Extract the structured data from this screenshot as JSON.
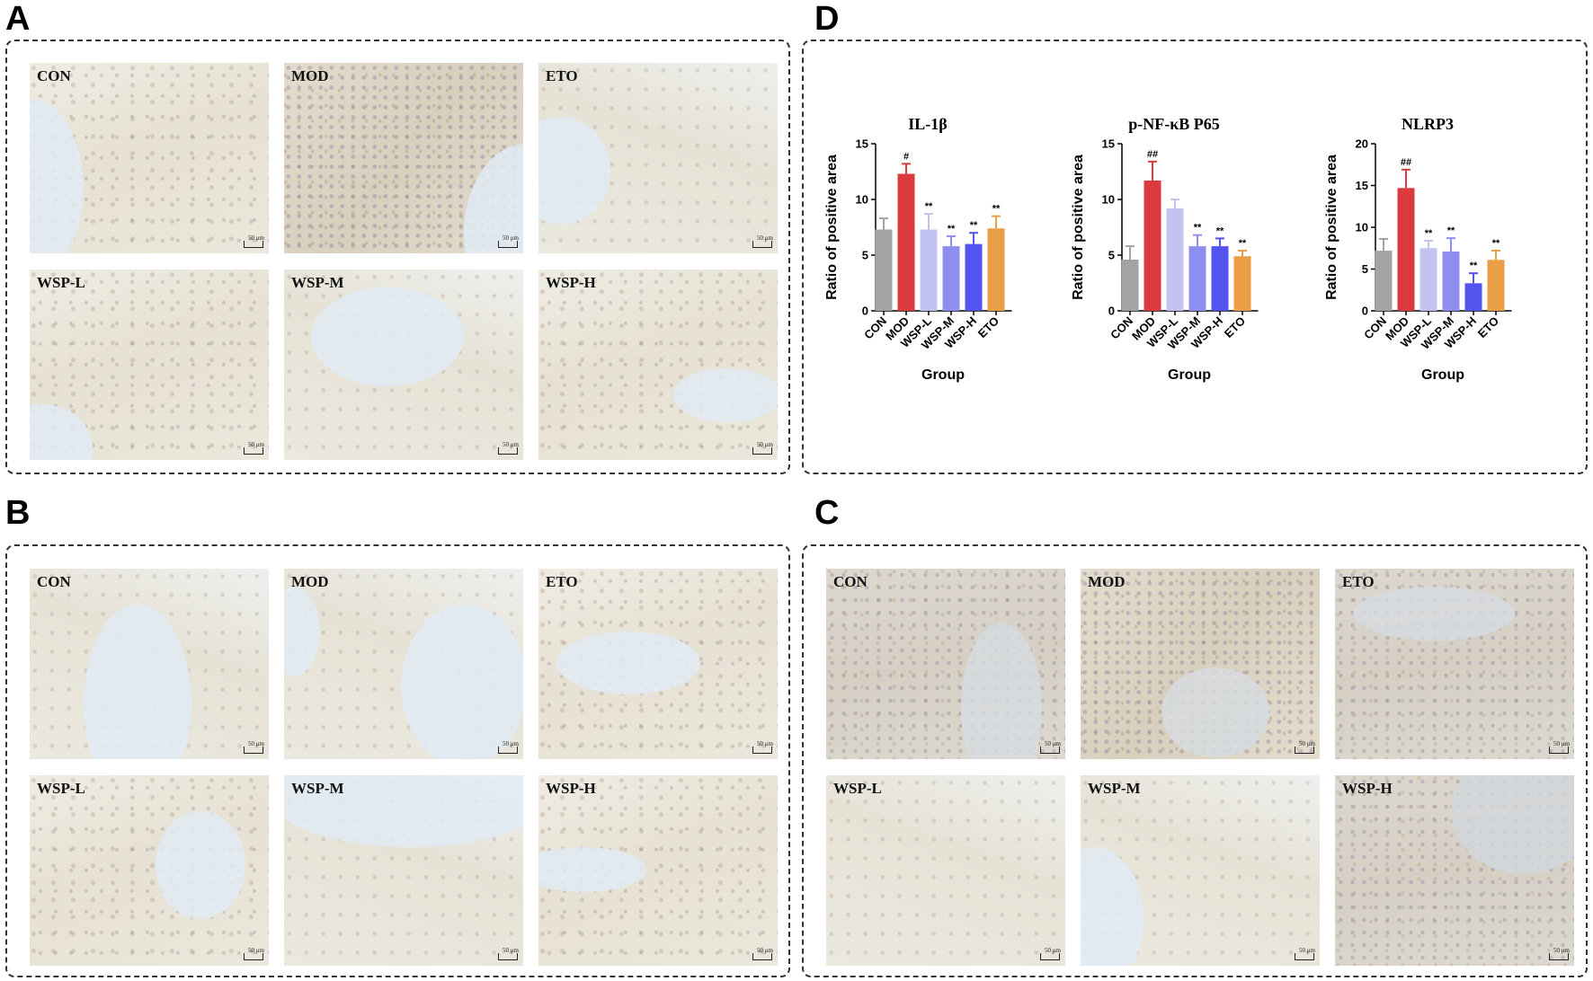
{
  "panels": {
    "A": {
      "letter": "A",
      "images": [
        "CON",
        "MOD",
        "ETO",
        "WSP-L",
        "WSP-M",
        "WSP-H"
      ]
    },
    "B": {
      "letter": "B",
      "images": [
        "CON",
        "MOD",
        "ETO",
        "WSP-L",
        "WSP-M",
        "WSP-H"
      ]
    },
    "C": {
      "letter": "C",
      "images": [
        "CON",
        "MOD",
        "ETO",
        "WSP-L",
        "WSP-M",
        "WSP-H"
      ]
    },
    "D": {
      "letter": "D"
    }
  },
  "scale_bar_label": "50 μm",
  "chart_data": [
    {
      "type": "bar",
      "title": "IL-1β",
      "xlabel": "Group",
      "ylabel": "Ratio of positive area",
      "categories": [
        "CON",
        "MOD",
        "WSP-L",
        "WSP-M",
        "WSP-H",
        "ETO"
      ],
      "values": [
        7.3,
        12.3,
        7.3,
        5.8,
        6.0,
        7.4
      ],
      "errors": [
        1.0,
        0.9,
        1.4,
        0.9,
        1.0,
        1.1
      ],
      "significance": [
        "",
        "#",
        "**",
        "**",
        "**",
        "**"
      ],
      "ylim": [
        0,
        15
      ],
      "yticks": [
        0,
        5,
        10,
        15
      ],
      "colors": [
        "#a3a2a5",
        "#db3a3f",
        "#c3c3f1",
        "#8e8ef0",
        "#5353ee",
        "#ea9e45"
      ]
    },
    {
      "type": "bar",
      "title": "p-NF-κB P65",
      "xlabel": "Group",
      "ylabel": "Ratio of positive area",
      "categories": [
        "CON",
        "MOD",
        "WSP-L",
        "WSP-M",
        "WSP-H",
        "ETO"
      ],
      "values": [
        4.6,
        11.7,
        9.2,
        5.8,
        5.8,
        4.9
      ],
      "errors": [
        1.2,
        1.7,
        0.8,
        1.0,
        0.7,
        0.5
      ],
      "significance": [
        "",
        "##",
        "",
        "**",
        "**",
        "**"
      ],
      "ylim": [
        0,
        15
      ],
      "yticks": [
        0,
        5,
        10,
        15
      ],
      "colors": [
        "#a3a2a5",
        "#db3a3f",
        "#c3c3f1",
        "#8e8ef0",
        "#5353ee",
        "#ea9e45"
      ]
    },
    {
      "type": "bar",
      "title": "NLRP3",
      "xlabel": "Group",
      "ylabel": "Ratio of positive area",
      "categories": [
        "CON",
        "MOD",
        "WSP-L",
        "WSP-M",
        "WSP-H",
        "ETO"
      ],
      "values": [
        7.2,
        14.7,
        7.5,
        7.1,
        3.3,
        6.1
      ],
      "errors": [
        1.4,
        2.2,
        0.9,
        1.6,
        1.2,
        1.1
      ],
      "significance": [
        "",
        "##",
        "**",
        "**",
        "**",
        "**"
      ],
      "ylim": [
        0,
        20
      ],
      "yticks": [
        0,
        5,
        10,
        15,
        20
      ],
      "colors": [
        "#a3a2a5",
        "#db3a3f",
        "#c3c3f1",
        "#8e8ef0",
        "#5353ee",
        "#ea9e45"
      ]
    }
  ]
}
